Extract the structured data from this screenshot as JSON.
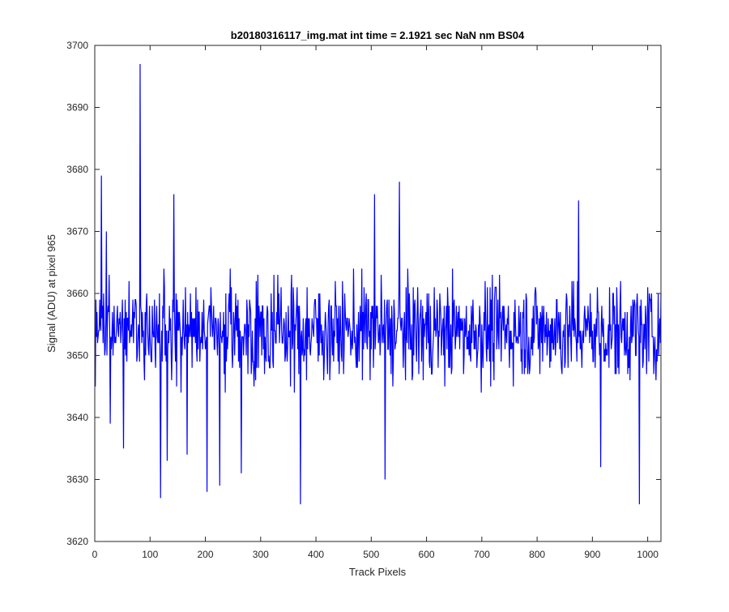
{
  "chart_data": {
    "type": "line",
    "title": "b20180316117_img.mat int time = 2.1921 sec  NaN nm BS04",
    "xlabel": "Track Pixels",
    "ylabel": "Signal (ADU) at pixel 965",
    "xlim": [
      0,
      1024
    ],
    "ylim": [
      3620,
      3700
    ],
    "x_ticks": [
      0,
      100,
      200,
      300,
      400,
      500,
      600,
      700,
      800,
      900,
      1000
    ],
    "y_ticks": [
      3620,
      3630,
      3640,
      3650,
      3660,
      3670,
      3680,
      3690,
      3700
    ],
    "grid": false,
    "legend": "none",
    "series": [
      {
        "color": "#0000ff",
        "x_start": 1,
        "x_step": 1,
        "points_shown": 1024,
        "baseline_mean": 3654,
        "typical_range": [
          3640,
          3670
        ],
        "notable_points": [
          {
            "x": 1,
            "y": 3645
          },
          {
            "x": 12,
            "y": 3679
          },
          {
            "x": 21,
            "y": 3670
          },
          {
            "x": 28,
            "y": 3639
          },
          {
            "x": 52,
            "y": 3635
          },
          {
            "x": 82,
            "y": 3697
          },
          {
            "x": 119,
            "y": 3627
          },
          {
            "x": 131,
            "y": 3633
          },
          {
            "x": 143,
            "y": 3676
          },
          {
            "x": 167,
            "y": 3634
          },
          {
            "x": 203,
            "y": 3628
          },
          {
            "x": 226,
            "y": 3629
          },
          {
            "x": 265,
            "y": 3631
          },
          {
            "x": 372,
            "y": 3626
          },
          {
            "x": 506,
            "y": 3676
          },
          {
            "x": 525,
            "y": 3630
          },
          {
            "x": 551,
            "y": 3678
          },
          {
            "x": 875,
            "y": 3675
          },
          {
            "x": 915,
            "y": 3632
          },
          {
            "x": 985,
            "y": 3626
          },
          {
            "x": 1024,
            "y": 3660
          }
        ]
      }
    ]
  }
}
